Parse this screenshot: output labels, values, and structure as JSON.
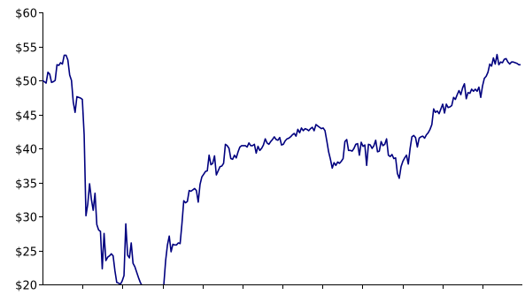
{
  "chart_data": {
    "type": "line",
    "title": "",
    "xlabel": "",
    "ylabel": "",
    "ylim": [
      20,
      60
    ],
    "y_ticks": [
      {
        "value": 60,
        "label": "$60"
      },
      {
        "value": 55,
        "label": "$55"
      },
      {
        "value": 50,
        "label": "$50"
      },
      {
        "value": 45,
        "label": "$45"
      },
      {
        "value": 40,
        "label": "$40"
      },
      {
        "value": 35,
        "label": "$35"
      },
      {
        "value": 30,
        "label": "$30"
      },
      {
        "value": 25,
        "label": "$25"
      },
      {
        "value": 20,
        "label": "$20"
      }
    ],
    "x_tick_count": 12,
    "grid": false,
    "series": [
      {
        "color": "#00007f",
        "values": [
          50,
          49.8,
          49.6,
          51.2,
          50.9,
          49.7,
          49.8,
          50.0,
          52.3,
          52.2,
          52.6,
          52.4,
          53.7,
          53.7,
          53.0,
          50.8,
          50.0,
          46.8,
          45.3,
          47.6,
          47.5,
          47.4,
          47.2,
          42.0,
          30.1,
          31.8,
          34.8,
          32.5,
          30.9,
          33.4,
          28.8,
          28.0,
          27.8,
          22.3,
          27.5,
          23.5,
          24.0,
          24.2,
          24.5,
          24.2,
          22.0,
          20.3,
          20.2,
          20.0,
          20.5,
          21.3,
          28.9,
          24.3,
          23.9,
          26.1,
          23.1,
          22.6,
          21.8,
          21.0,
          20.3,
          19.8,
          19.6,
          19.4,
          19.3,
          19.4,
          19.5,
          19.3,
          19.2,
          19.3,
          19.4,
          19.2,
          19.3,
          20.0,
          23.5,
          25.8,
          27.1,
          24.8,
          25.9,
          25.8,
          25.8,
          26.1,
          26.0,
          28.9,
          32.3,
          32.0,
          32.2,
          33.8,
          33.7,
          33.9,
          34.1,
          33.8,
          32.1,
          34.7,
          35.8,
          36.2,
          36.6,
          36.7,
          39.0,
          37.6,
          37.8,
          38.9,
          36.1,
          36.7,
          37.3,
          37.4,
          37.8,
          40.6,
          40.4,
          40.0,
          38.5,
          38.4,
          39.0,
          38.6,
          39.5,
          40.2,
          40.4,
          40.4,
          40.4,
          40.2,
          40.8,
          40.4,
          40.4,
          40.6,
          39.3,
          40.3,
          39.7,
          40.0,
          40.5,
          41.4,
          40.8,
          40.6,
          41.0,
          41.3,
          41.7,
          41.3,
          41.2,
          41.6,
          40.5,
          40.6,
          41.1,
          41.4,
          41.5,
          41.7,
          42.0,
          42.2,
          41.8,
          42.8,
          42.3,
          43.0,
          42.6,
          42.9,
          42.8,
          42.6,
          42.9,
          43.1,
          42.6,
          43.5,
          43.3,
          43.1,
          42.9,
          43.0,
          42.6,
          41.1,
          39.5,
          38.4,
          37.1,
          37.9,
          37.5,
          38.0,
          37.8,
          38.1,
          38.5,
          41.0,
          41.3,
          39.7,
          39.7,
          39.6,
          40.0,
          40.6,
          40.7,
          39.0,
          40.9,
          40.3,
          40.5,
          37.5,
          40.6,
          40.5,
          40.0,
          40.4,
          41.2,
          39.5,
          39.6,
          41.0,
          40.4,
          40.6,
          41.4,
          39.0,
          38.8,
          39.1,
          38.5,
          38.6,
          36.3,
          35.6,
          37.3,
          38.1,
          38.6,
          39.0,
          37.7,
          40.0,
          41.7,
          41.9,
          41.6,
          40.2,
          41.5,
          41.7,
          41.8,
          41.5,
          42.0,
          42.3,
          42.8,
          43.5,
          45.8,
          45.3,
          45.5,
          45.1,
          45.8,
          46.5,
          45.2,
          46.5,
          46.0,
          46.1,
          46.3,
          47.5,
          47.2,
          47.9,
          48.5,
          47.9,
          48.9,
          49.5,
          47.3,
          48.2,
          48.1,
          48.7,
          48.4,
          48.7,
          48.4,
          49.0,
          47.5,
          49.2,
          50.3,
          50.6,
          51.2,
          52.4,
          52.1,
          53.3,
          52.4,
          53.8,
          52.3,
          52.7,
          52.6,
          53.1,
          53.2,
          52.7,
          52.4,
          52.7,
          52.7,
          52.6,
          52.5,
          52.3,
          52.3
        ]
      }
    ]
  }
}
